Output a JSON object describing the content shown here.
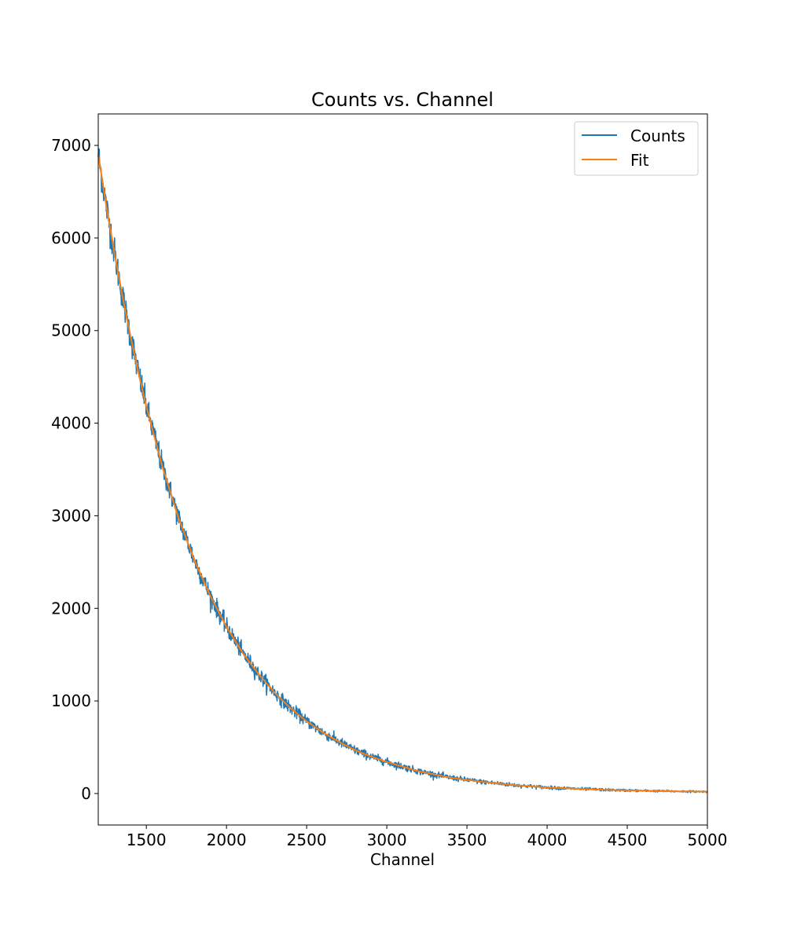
{
  "chart_data": {
    "type": "line",
    "title": "Counts vs. Channel",
    "xlabel": "Channel",
    "ylabel": "",
    "xlim": [
      1200,
      5000
    ],
    "ylim": [
      -340,
      7340
    ],
    "x_ticks": [
      1500,
      2000,
      2500,
      3000,
      3500,
      4000,
      4500,
      5000
    ],
    "y_ticks": [
      0,
      1000,
      2000,
      3000,
      4000,
      5000,
      6000,
      7000
    ],
    "grid": false,
    "legend_position": "top-right",
    "series": [
      {
        "name": "Counts",
        "color": "#1f77b4",
        "style": "noisy-line",
        "x": [
          1200,
          1250,
          1300,
          1350,
          1400,
          1450,
          1500,
          1600,
          1700,
          1800,
          1900,
          2000,
          2100,
          2200,
          2300,
          2400,
          2500,
          2600,
          2700,
          2800,
          2900,
          3000,
          3200,
          3400,
          3600,
          3800,
          4000,
          4200,
          4400,
          4600,
          4800,
          5000
        ],
        "values": [
          6900,
          6350,
          5850,
          5380,
          4950,
          4550,
          4180,
          3530,
          2980,
          2520,
          2130,
          1800,
          1520,
          1290,
          1090,
          920,
          780,
          660,
          560,
          470,
          400,
          340,
          240,
          170,
          125,
          90,
          65,
          50,
          38,
          30,
          24,
          20
        ]
      },
      {
        "name": "Fit",
        "color": "#ff7f0e",
        "style": "line",
        "x": [
          1200,
          1250,
          1300,
          1350,
          1400,
          1450,
          1500,
          1600,
          1700,
          1800,
          1900,
          2000,
          2100,
          2200,
          2300,
          2400,
          2500,
          2600,
          2700,
          2800,
          2900,
          3000,
          3200,
          3400,
          3600,
          3800,
          4000,
          4200,
          4400,
          4600,
          4800,
          5000
        ],
        "values": [
          6900,
          6350,
          5850,
          5380,
          4950,
          4550,
          4180,
          3530,
          2980,
          2520,
          2130,
          1800,
          1520,
          1290,
          1090,
          920,
          780,
          660,
          560,
          470,
          400,
          340,
          240,
          170,
          125,
          90,
          65,
          50,
          38,
          30,
          24,
          20
        ]
      }
    ]
  }
}
